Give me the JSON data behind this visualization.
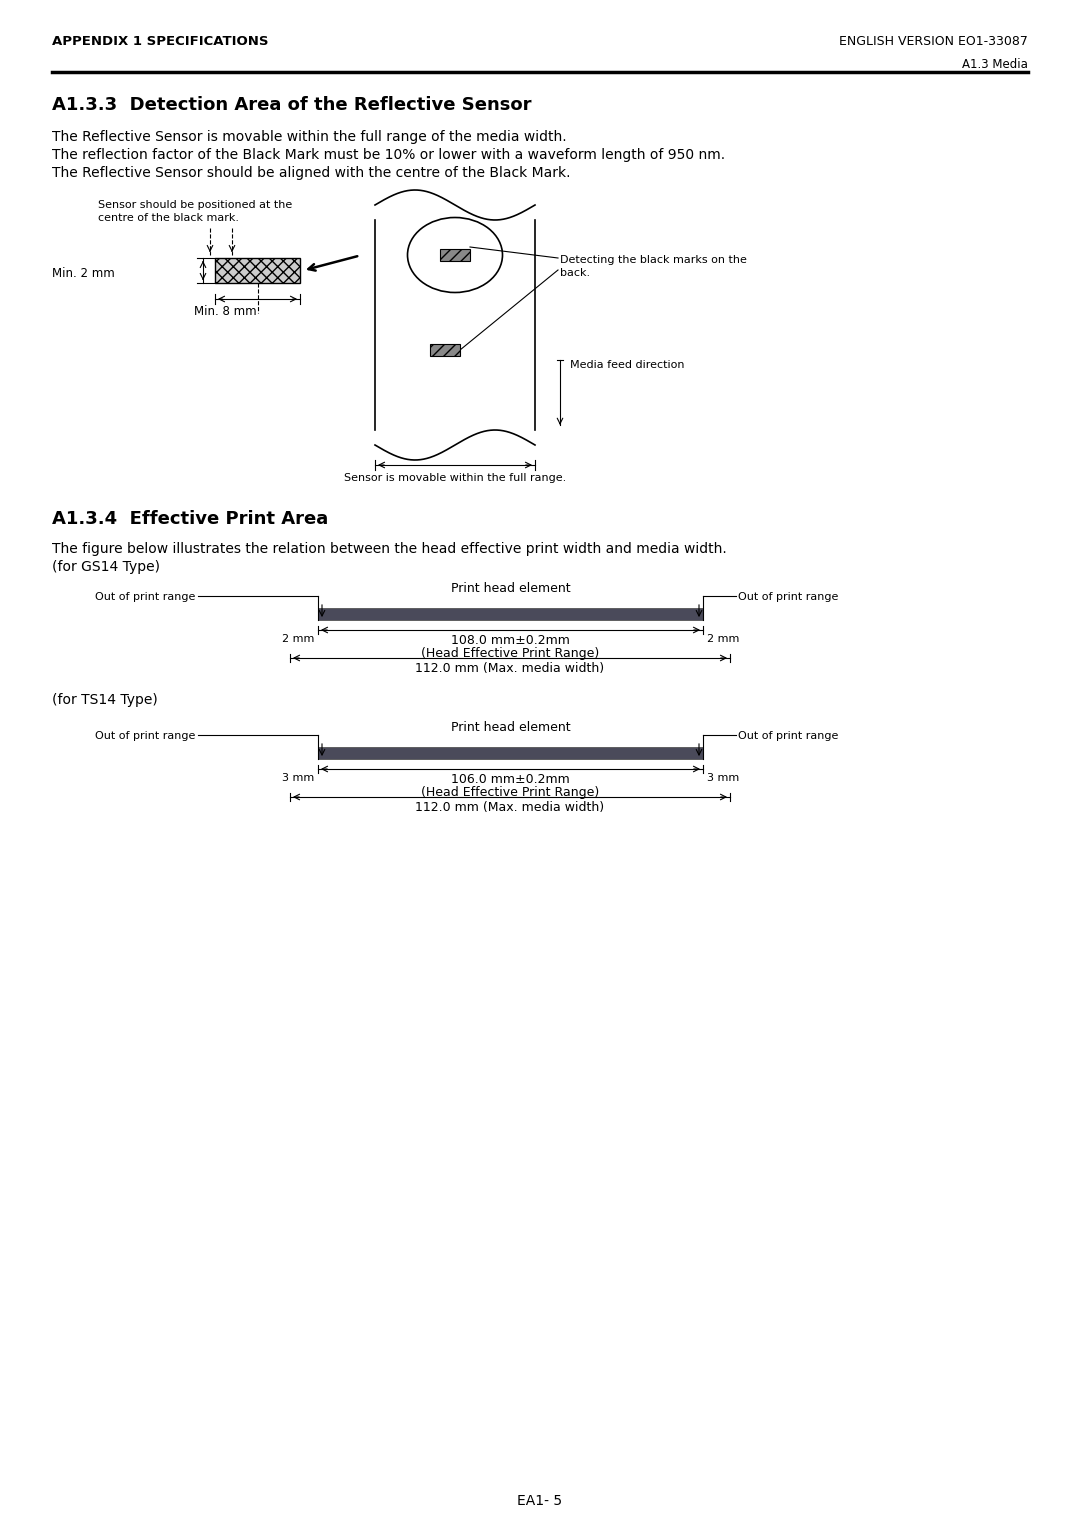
{
  "header_left": "APPENDIX 1 SPECIFICATIONS",
  "header_right": "ENGLISH VERSION EO1-33087",
  "subheader_right": "A1.3 Media",
  "section1_title": "A1.3.3  Detection Area of the Reflective Sensor",
  "section1_text": [
    "The Reflective Sensor is movable within the full range of the media width.",
    "The reflection factor of the Black Mark must be 10% or lower with a waveform length of 950 nm.",
    "The Reflective Sensor should be aligned with the centre of the Black Mark."
  ],
  "section2_title": "A1.3.4  Effective Print Area",
  "section2_text": "The figure below illustrates the relation between the head effective print width and media width.",
  "gs14_label": "(for GS14 Type)",
  "ts14_label": "(for TS14 Type)",
  "gs14_head_range": "108.0 mm±0.2mm",
  "gs14_head_label": "(Head Effective Print Range)",
  "gs14_media": "112.0 mm (Max. media width)",
  "gs14_left_mm": "2 mm",
  "gs14_right_mm": "2 mm",
  "ts14_head_range": "106.0 mm±0.2mm",
  "ts14_head_label": "(Head Effective Print Range)",
  "ts14_media": "112.0 mm (Max. media width)",
  "ts14_left_mm": "3 mm",
  "ts14_right_mm": "3 mm",
  "print_head_label": "Print head element",
  "out_of_range_left": "Out of print range",
  "out_of_range_right": "Out of print range",
  "sensor_label1": "Sensor should be positioned at the",
  "sensor_label2": "centre of the black mark.",
  "min2mm": "Min. 2 mm",
  "min8mm": "Min. 8 mm",
  "detect_label1": "Detecting the black marks on the",
  "detect_label2": "back.",
  "media_feed": "Media feed direction",
  "sensor_movable": "Sensor is movable within the full range.",
  "footer": "EA1- 5",
  "bg_color": "#ffffff",
  "text_color": "#000000",
  "dark_bar_color": "#4a4a5a",
  "line_color": "#000000"
}
